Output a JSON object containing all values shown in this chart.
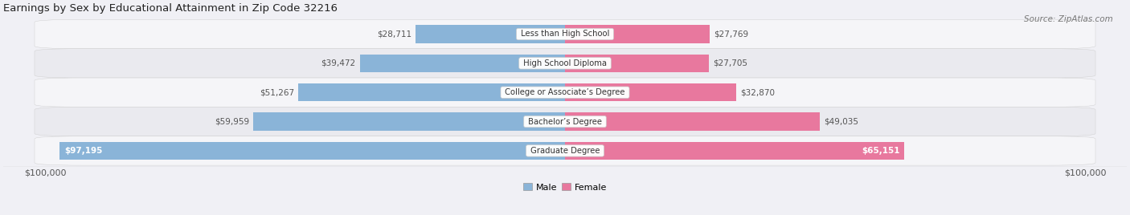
{
  "title": "Earnings by Sex by Educational Attainment in Zip Code 32216",
  "source": "Source: ZipAtlas.com",
  "categories": [
    "Less than High School",
    "High School Diploma",
    "College or Associate’s Degree",
    "Bachelor’s Degree",
    "Graduate Degree"
  ],
  "male_values": [
    28711,
    39472,
    51267,
    59959,
    97195
  ],
  "female_values": [
    27769,
    27705,
    32870,
    49035,
    65151
  ],
  "male_color": "#8ab4d8",
  "female_color": "#e8789e",
  "male_label_inside_color": "#ffffff",
  "label_outside_color": "#555555",
  "max_value": 100000,
  "bar_height": 0.62,
  "background_color": "#f0f0f5",
  "row_light": "#f5f5f8",
  "row_dark": "#eaeaef"
}
